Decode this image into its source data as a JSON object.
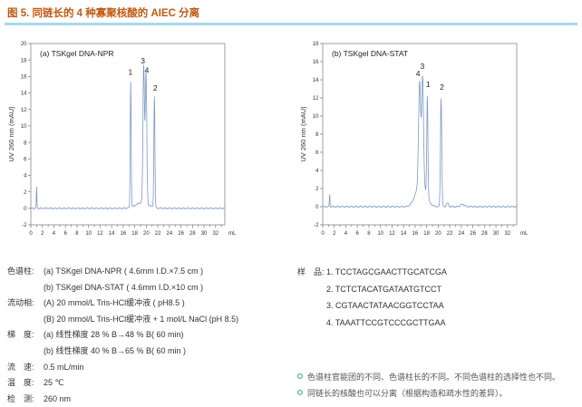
{
  "header": {
    "title": "图 5. 同链长的 4 种寡聚核酸的 AIEC 分离"
  },
  "colors": {
    "title_text": "#c35a11",
    "title_rule": "#a8d9ec",
    "trace": "#7b99cb",
    "axis": "#777777",
    "tick_text": "#333333",
    "note_bullet": "#47b08e"
  },
  "chart_data": [
    {
      "panel": "a",
      "type": "line",
      "title": "(a) TSKgel DNA-NPR",
      "ylabel": "UV 260 nm (mAU)",
      "x_unit": "mL",
      "xlim": [
        0,
        33.6
      ],
      "ylim": [
        -2,
        20
      ],
      "x_label_step": 2,
      "x_minor_step": 1,
      "y_tick_step": 2,
      "grid": "off",
      "peaks": [
        {
          "name": "injection",
          "x": 1.0,
          "height": 2.6,
          "sigma": 0.05
        },
        {
          "name": "base-hump",
          "x": 19.3,
          "height": 0.7,
          "sigma": 1.1
        },
        {
          "name": "peak-1",
          "label": "1",
          "x": 17.3,
          "height": 15.3,
          "sigma": 0.08
        },
        {
          "name": "peak-3",
          "label": "3",
          "x": 19.55,
          "height": 16.6,
          "sigma": 0.13
        },
        {
          "name": "peak-4",
          "label": "4",
          "x": 19.95,
          "height": 15.8,
          "sigma": 0.13
        },
        {
          "name": "peak-2",
          "label": "2",
          "x": 21.4,
          "height": 13.5,
          "sigma": 0.09
        }
      ],
      "peak_labels": [
        {
          "text": "1",
          "x": 17.25,
          "y": 16.2
        },
        {
          "text": "3",
          "x": 19.4,
          "y": 17.6
        },
        {
          "text": "4",
          "x": 20.1,
          "y": 16.4
        },
        {
          "text": "2",
          "x": 21.55,
          "y": 14.3
        }
      ]
    },
    {
      "panel": "b",
      "type": "line",
      "title": "(b) TSKgel DNA-STAT",
      "ylabel": "UV 260 nm (mAU)",
      "x_unit": "mL",
      "xlim": [
        0,
        33.6
      ],
      "ylim": [
        -2,
        18
      ],
      "x_label_step": 2,
      "x_minor_step": 1,
      "y_tick_step": 2,
      "grid": "off",
      "peaks": [
        {
          "name": "injection",
          "x": 1.2,
          "height": 1.4,
          "sigma": 0.05
        },
        {
          "name": "base-hump",
          "x": 17.0,
          "height": 2.6,
          "sigma": 0.85
        },
        {
          "name": "peak-4",
          "label": "4",
          "x": 16.78,
          "height": 11.3,
          "sigma": 0.18
        },
        {
          "name": "peak-3",
          "label": "3",
          "x": 17.3,
          "height": 11.9,
          "sigma": 0.16
        },
        {
          "name": "peak-1",
          "label": "1",
          "x": 18.12,
          "height": 11.2,
          "sigma": 0.1
        },
        {
          "name": "peak-2",
          "label": "2",
          "x": 20.5,
          "height": 12.0,
          "sigma": 0.11
        },
        {
          "name": "minor-1",
          "x": 21.6,
          "height": 0.4,
          "sigma": 0.18
        },
        {
          "name": "minor-2",
          "x": 24.2,
          "height": 0.25,
          "sigma": 0.35
        }
      ],
      "peak_labels": [
        {
          "text": "4",
          "x": 16.5,
          "y": 14.4
        },
        {
          "text": "3",
          "x": 17.25,
          "y": 15.2
        },
        {
          "text": "1",
          "x": 18.25,
          "y": 13.2
        },
        {
          "text": "2",
          "x": 20.65,
          "y": 12.9
        }
      ]
    }
  ],
  "conditions": {
    "rows": [
      {
        "label": "色谱柱:",
        "lines": [
          "(a) TSKgel DNA-NPR ( 4.6mm I.D.×7.5 cm )",
          "(b) TSKgel DNA-STAT ( 4.6mm I.D.×10 cm )"
        ]
      },
      {
        "label": "流动相:",
        "lines": [
          "(A) 20 mmol/L Tris-HCl缓冲液 ( pH8.5 )",
          "(B) 20 mmol/L Tris-HCl缓冲液 + 1 mol/L NaCl (pH 8.5)"
        ]
      },
      {
        "label": "梯　度:",
        "lines": [
          "(a) 线性梯度 28 % B→48 % B( 60 min)",
          "(b) 线性梯度 40 % B→65 % B( 60 min )"
        ]
      },
      {
        "label": "流　速:",
        "lines": [
          "0.5 mL/min"
        ]
      },
      {
        "label": "温　度:",
        "lines": [
          "25 ℃"
        ]
      },
      {
        "label": "检　测:",
        "lines": [
          "260 nm"
        ]
      }
    ]
  },
  "sample": {
    "label": "样　品:",
    "sequences": [
      "1. TCCTAGCGAACTTGCATCGA",
      "2. TCTCTACATGATAATGTCCT",
      "3. CGTAACTATAACGGTCCTAA",
      "4. TAAATTCCGTCCCGCTTGAA"
    ]
  },
  "notes": [
    "色谱柱官能团的不同、色谱柱长的不同。不同色谱柱的选择性也不同。",
    "同链长的核酸也可以分离（根据构造和疏水性的差异）。"
  ]
}
